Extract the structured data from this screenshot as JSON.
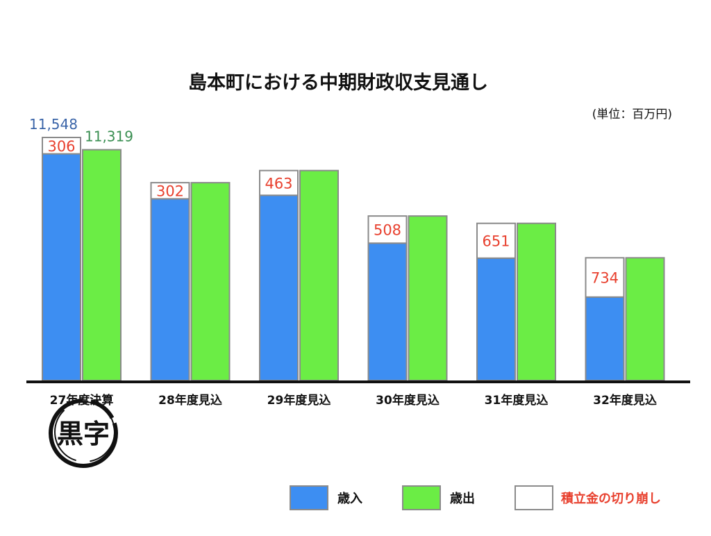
{
  "chart_data": {
    "type": "bar",
    "title": "島本町における中期財政収支見通し",
    "unit_label": "(単位：百万円)",
    "categories": [
      "27年度決算",
      "28年度見込",
      "29年度見込",
      "30年度見込",
      "31年度見込",
      "32年度見込"
    ],
    "series": [
      {
        "name": "歳入",
        "values": [
          11242,
          10400,
          10466,
          9570,
          9290,
          8562
        ],
        "color": "#3d8ef2"
      },
      {
        "name": "歳出",
        "values": [
          11319,
          10702,
          10929,
          10078,
          9941,
          9296
        ],
        "color": "#6bed45"
      },
      {
        "name": "積立金の切り崩し",
        "values": [
          306,
          302,
          463,
          508,
          651,
          734
        ],
        "color": "#ffffff"
      }
    ],
    "value_labels": {
      "revenue_total_first": "11,548",
      "expenditure_first": "11,319"
    },
    "ylim": [
      7000,
      11600
    ],
    "legend_position": "bottom-right",
    "grid": false
  },
  "colors": {
    "revenue_label": "#3a64a8",
    "expenditure_label": "#3a8f52",
    "reserve_label": "#e8402e",
    "stamp": "#111111"
  },
  "stamp": {
    "text": "黒字",
    "icon": "circle-brush-stamp"
  },
  "legend": {
    "items": [
      {
        "label": "歳入",
        "color": "#3d8ef2"
      },
      {
        "label": "歳出",
        "color": "#6bed45"
      },
      {
        "label": "積立金の切り崩し",
        "color": "#ffffff"
      }
    ]
  }
}
